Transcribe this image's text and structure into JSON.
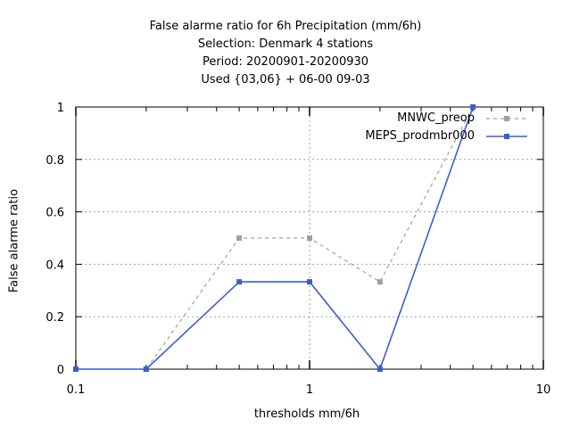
{
  "chart_data": {
    "type": "line",
    "title_lines": [
      "False alarme ratio  for 6h Precipitation (mm/6h)",
      "Selection: Denmark      4 stations",
      "Period: 20200901-20200930",
      "Used {03,06} + 06-00 09-03"
    ],
    "xlabel": "thresholds mm/6h",
    "ylabel": "False alarme ratio",
    "x_scale": "log",
    "xlim": [
      0.1,
      10
    ],
    "ylim": [
      0,
      1
    ],
    "x_ticks": [
      0.1,
      1,
      10
    ],
    "x_tick_labels": [
      "0.1",
      "1",
      "10"
    ],
    "y_ticks": [
      0,
      0.2,
      0.4,
      0.6,
      0.8,
      1
    ],
    "y_tick_labels": [
      "0",
      "0.2",
      "0.4",
      "0.6",
      "0.8",
      "1"
    ],
    "grid": true,
    "legend_position": "top-right",
    "series": [
      {
        "name": "MNWC_preop",
        "color": "#a0a0a0",
        "dash": true,
        "x": [
          0.1,
          0.2,
          0.5,
          1,
          2,
          5
        ],
        "y": [
          0,
          0,
          0.5,
          0.5,
          0.333,
          1
        ]
      },
      {
        "name": "MEPS_prodmbr000",
        "color": "#3a5fcd",
        "dash": false,
        "x": [
          0.1,
          0.2,
          0.5,
          1,
          2,
          5
        ],
        "y": [
          0,
          0,
          0.333,
          0.333,
          0,
          1
        ]
      }
    ]
  }
}
